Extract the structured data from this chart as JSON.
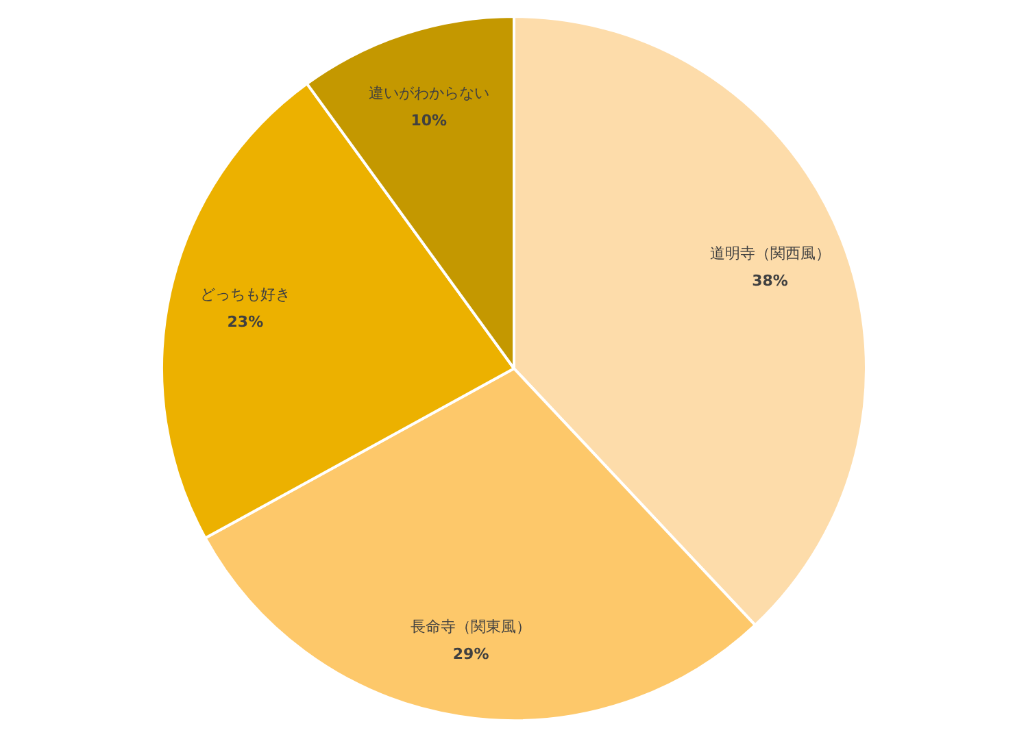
{
  "chart_data": {
    "type": "pie",
    "categories": [
      "道明寺（関西風）",
      "長命寺（関東風）",
      "どっちも好き",
      "違いがわからない"
    ],
    "values": [
      38,
      29,
      23,
      10
    ],
    "colors": [
      "#fddcaa",
      "#fdc86a",
      "#ecb100",
      "#c49800"
    ],
    "value_labels": [
      "38%",
      "29%",
      "23%",
      "10%"
    ],
    "legend": false
  }
}
